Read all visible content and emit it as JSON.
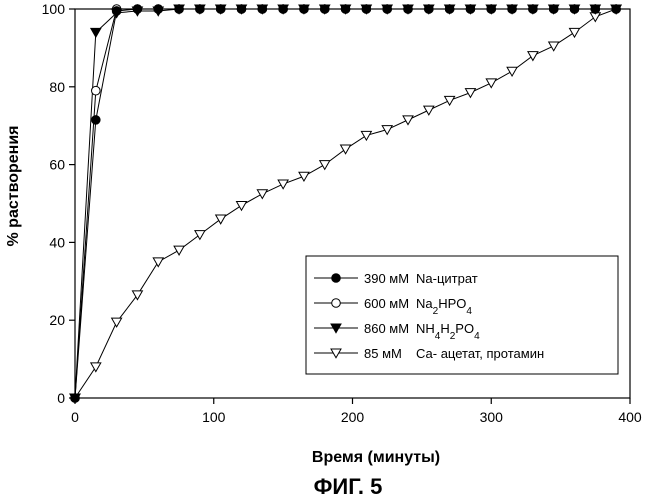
{
  "figure_caption": "ФИГ. 5",
  "chart_data": {
    "type": "line",
    "xlabel": "Время (минуты)",
    "ylabel": "% растворения",
    "xlim": [
      0,
      400
    ],
    "ylim": [
      0,
      100
    ],
    "xticks": [
      0,
      100,
      200,
      300,
      400
    ],
    "yticks": [
      0,
      20,
      40,
      60,
      80,
      100
    ],
    "grid": false,
    "legend_position": "bottom-right",
    "series": [
      {
        "name": "390 мМ Na-цитрат",
        "legend": {
          "conc": "390 мМ",
          "prefix": "Na-цитрат"
        },
        "marker": "filled-circle",
        "x": [
          0,
          15,
          30,
          45,
          60,
          75,
          90,
          105,
          120,
          135,
          150,
          165,
          180,
          195,
          210,
          225,
          240,
          255,
          270,
          285,
          300,
          315,
          330,
          345,
          360,
          375,
          390
        ],
        "y": [
          0,
          71.5,
          99.5,
          100,
          100,
          100,
          100,
          100,
          100,
          100,
          100,
          100,
          100,
          100,
          100,
          100,
          100,
          100,
          100,
          100,
          100,
          100,
          100,
          100,
          100,
          100,
          100
        ]
      },
      {
        "name": "600 мМ Na2HPO4",
        "legend": {
          "conc": "600 мМ",
          "prefix": "Na",
          "sub1": "2",
          "mid": "HPO",
          "sub2": "4",
          "suffix": ""
        },
        "marker": "open-circle",
        "x": [
          0,
          15,
          30,
          45,
          60,
          75,
          90,
          105,
          120,
          135,
          150,
          165,
          180,
          195,
          210,
          225,
          240,
          255,
          270,
          285,
          300,
          315,
          330,
          345,
          360,
          375,
          390
        ],
        "y": [
          0,
          79,
          100,
          100,
          100,
          100,
          100,
          100,
          100,
          100,
          100,
          100,
          100,
          100,
          100,
          100,
          100,
          100,
          100,
          100,
          100,
          100,
          100,
          100,
          100,
          100,
          100
        ]
      },
      {
        "name": "860 мМ NH4H2PO4",
        "legend": {
          "conc": "860 мМ",
          "prefix": "NH",
          "sub1": "4",
          "mid": "H",
          "sub2": "2",
          "suffix": "PO",
          "sub3": "4"
        },
        "marker": "filled-triangle-down",
        "x": [
          0,
          15,
          30,
          45,
          60,
          75,
          90,
          105,
          120,
          135,
          150,
          165,
          180,
          195,
          210,
          225,
          240,
          255,
          270,
          285,
          300,
          315,
          330,
          345,
          360,
          375,
          390
        ],
        "y": [
          0,
          94,
          99,
          99.5,
          99.5,
          100,
          100,
          100,
          100,
          100,
          100,
          100,
          100,
          100,
          100,
          100,
          100,
          100,
          100,
          100,
          100,
          100,
          100,
          100,
          100,
          100,
          100
        ]
      },
      {
        "name": "85 мМ Са-ацетат, протамин",
        "legend": {
          "conc": "85 мМ",
          "prefix": "Са- ацетат, протамин"
        },
        "marker": "open-triangle-down",
        "x": [
          0,
          15,
          30,
          45,
          60,
          75,
          90,
          105,
          120,
          135,
          150,
          165,
          180,
          195,
          210,
          225,
          240,
          255,
          270,
          285,
          300,
          315,
          330,
          345,
          360,
          375,
          390
        ],
        "y": [
          0,
          8,
          19.5,
          26.5,
          35,
          38,
          42,
          46,
          49.5,
          52.5,
          55,
          57,
          60,
          64,
          67.5,
          69,
          71.5,
          74,
          76.5,
          78.5,
          81,
          84,
          88,
          90.5,
          94,
          98,
          100
        ]
      }
    ]
  }
}
